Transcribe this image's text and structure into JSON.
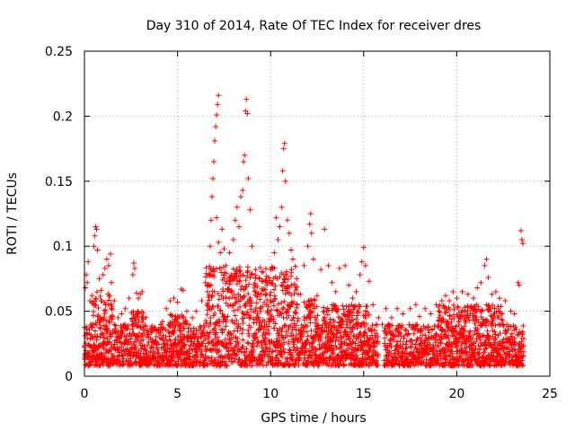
{
  "chart_data": {
    "type": "scatter",
    "title": "Day 310 of 2014, Rate Of TEC Index for receiver dres",
    "xlabel": "GPS time / hours",
    "ylabel": "ROTI / TECUs",
    "xlim": [
      0,
      25
    ],
    "ylim": [
      0,
      0.25
    ],
    "x_ticks": [
      0,
      5,
      10,
      15,
      20,
      25
    ],
    "x_tick_labels": [
      "0",
      "5",
      "10",
      "15",
      "20",
      "25"
    ],
    "y_ticks": [
      0,
      0.05,
      0.1,
      0.15,
      0.2,
      0.25
    ],
    "y_tick_labels": [
      "0",
      "0.05",
      "0.1",
      "0.15",
      "0.2",
      "0.25"
    ],
    "grid": true,
    "marker": "+",
    "color": "#ff0000",
    "series": [
      {
        "name": "ROTI",
        "points": [
          [
            0.05,
            0.068
          ],
          [
            0.1,
            0.078
          ],
          [
            0.15,
            0.072
          ],
          [
            0.2,
            0.088
          ],
          [
            0.3,
            0.058
          ],
          [
            0.4,
            0.062
          ],
          [
            0.5,
            0.1
          ],
          [
            0.55,
            0.108
          ],
          [
            0.6,
            0.115
          ],
          [
            0.65,
            0.113
          ],
          [
            0.7,
            0.097
          ],
          [
            0.8,
            0.075
          ],
          [
            0.9,
            0.066
          ],
          [
            1.0,
            0.078
          ],
          [
            1.1,
            0.083
          ],
          [
            1.2,
            0.09
          ],
          [
            1.3,
            0.085
          ],
          [
            1.4,
            0.094
          ],
          [
            1.45,
            0.072
          ],
          [
            1.6,
            0.058
          ],
          [
            1.8,
            0.045
          ],
          [
            2.0,
            0.048
          ],
          [
            2.2,
            0.052
          ],
          [
            2.4,
            0.06
          ],
          [
            2.6,
            0.078
          ],
          [
            2.65,
            0.087
          ],
          [
            2.7,
            0.083
          ],
          [
            2.8,
            0.064
          ],
          [
            2.9,
            0.06
          ],
          [
            3.0,
            0.063
          ],
          [
            3.1,
            0.065
          ],
          [
            3.3,
            0.045
          ],
          [
            3.6,
            0.035
          ],
          [
            4.0,
            0.033
          ],
          [
            4.2,
            0.042
          ],
          [
            4.4,
            0.052
          ],
          [
            4.6,
            0.058
          ],
          [
            4.8,
            0.06
          ],
          [
            5.0,
            0.057
          ],
          [
            5.2,
            0.067
          ],
          [
            5.3,
            0.066
          ],
          [
            5.5,
            0.05
          ],
          [
            5.8,
            0.045
          ],
          [
            6.0,
            0.05
          ],
          [
            6.3,
            0.058
          ],
          [
            6.5,
            0.072
          ],
          [
            6.6,
            0.065
          ],
          [
            6.75,
            0.1
          ],
          [
            6.8,
            0.12
          ],
          [
            6.85,
            0.138
          ],
          [
            6.9,
            0.152
          ],
          [
            6.95,
            0.165
          ],
          [
            7.0,
            0.181
          ],
          [
            7.05,
            0.192
          ],
          [
            7.1,
            0.201
          ],
          [
            7.15,
            0.209
          ],
          [
            7.2,
            0.216
          ],
          [
            7.1,
            0.122
          ],
          [
            7.2,
            0.103
          ],
          [
            7.3,
            0.095
          ],
          [
            7.4,
            0.113
          ],
          [
            7.5,
            0.098
          ],
          [
            7.6,
            0.085
          ],
          [
            7.8,
            0.095
          ],
          [
            8.0,
            0.105
          ],
          [
            8.1,
            0.12
          ],
          [
            8.2,
            0.13
          ],
          [
            8.3,
            0.115
          ],
          [
            8.4,
            0.138
          ],
          [
            8.5,
            0.143
          ],
          [
            8.55,
            0.165
          ],
          [
            8.6,
            0.17
          ],
          [
            8.65,
            0.204
          ],
          [
            8.7,
            0.213
          ],
          [
            8.75,
            0.202
          ],
          [
            8.8,
            0.152
          ],
          [
            8.9,
            0.128
          ],
          [
            9.0,
            0.1
          ],
          [
            9.2,
            0.082
          ],
          [
            9.4,
            0.075
          ],
          [
            9.6,
            0.08
          ],
          [
            9.8,
            0.07
          ],
          [
            10.0,
            0.082
          ],
          [
            10.2,
            0.095
          ],
          [
            10.3,
            0.122
          ],
          [
            10.4,
            0.105
          ],
          [
            10.5,
            0.115
          ],
          [
            10.6,
            0.13
          ],
          [
            10.65,
            0.158
          ],
          [
            10.7,
            0.175
          ],
          [
            10.75,
            0.179
          ],
          [
            10.8,
            0.15
          ],
          [
            10.9,
            0.12
          ],
          [
            11.0,
            0.11
          ],
          [
            11.1,
            0.097
          ],
          [
            11.2,
            0.09
          ],
          [
            11.4,
            0.075
          ],
          [
            11.6,
            0.063
          ],
          [
            11.8,
            0.085
          ],
          [
            12.0,
            0.1
          ],
          [
            12.1,
            0.117
          ],
          [
            12.15,
            0.125
          ],
          [
            12.2,
            0.11
          ],
          [
            12.3,
            0.09
          ],
          [
            12.5,
            0.062
          ],
          [
            12.7,
            0.082
          ],
          [
            12.9,
            0.113
          ],
          [
            13.1,
            0.085
          ],
          [
            13.3,
            0.072
          ],
          [
            13.5,
            0.065
          ],
          [
            13.7,
            0.083
          ],
          [
            14.0,
            0.085
          ],
          [
            14.2,
            0.07
          ],
          [
            14.4,
            0.06
          ],
          [
            14.6,
            0.065
          ],
          [
            14.8,
            0.078
          ],
          [
            14.9,
            0.088
          ],
          [
            15.0,
            0.099
          ],
          [
            15.1,
            0.085
          ],
          [
            15.3,
            0.073
          ],
          [
            15.5,
            0.055
          ],
          [
            15.8,
            0.045
          ],
          [
            16.0,
            0.04
          ],
          [
            16.2,
            0.052
          ],
          [
            16.5,
            0.045
          ],
          [
            16.8,
            0.052
          ],
          [
            17.1,
            0.048
          ],
          [
            17.5,
            0.052
          ],
          [
            17.8,
            0.055
          ],
          [
            18.0,
            0.046
          ],
          [
            18.3,
            0.052
          ],
          [
            18.6,
            0.048
          ],
          [
            18.9,
            0.055
          ],
          [
            19.2,
            0.058
          ],
          [
            19.4,
            0.062
          ],
          [
            19.6,
            0.058
          ],
          [
            19.8,
            0.065
          ],
          [
            20.0,
            0.06
          ],
          [
            20.3,
            0.065
          ],
          [
            20.6,
            0.063
          ],
          [
            20.9,
            0.06
          ],
          [
            21.1,
            0.068
          ],
          [
            21.3,
            0.072
          ],
          [
            21.5,
            0.085
          ],
          [
            21.6,
            0.09
          ],
          [
            21.7,
            0.076
          ],
          [
            21.9,
            0.063
          ],
          [
            22.1,
            0.065
          ],
          [
            22.3,
            0.06
          ],
          [
            22.6,
            0.058
          ],
          [
            22.9,
            0.05
          ],
          [
            23.1,
            0.048
          ],
          [
            23.3,
            0.072
          ],
          [
            23.35,
            0.07
          ],
          [
            23.45,
            0.112
          ],
          [
            23.5,
            0.105
          ],
          [
            23.55,
            0.102
          ]
        ]
      }
    ],
    "dense_band": {
      "description": "dense background cluster of + markers",
      "x_range": [
        0,
        23.6
      ],
      "y_range_typical": [
        0.008,
        0.04
      ],
      "gap_hours": [
        15.8,
        16.1
      ],
      "high_activity_windows": [
        [
          0.4,
          1.5
        ],
        [
          2.5,
          3.2
        ],
        [
          4.5,
          5.5
        ],
        [
          6.5,
          11.5
        ],
        [
          11.8,
          12.6
        ],
        [
          12.8,
          15.3
        ],
        [
          19.0,
          22.5
        ]
      ],
      "activity_upper": [
        0.065,
        0.05,
        0.048,
        0.085,
        0.06,
        0.055,
        0.055
      ]
    }
  }
}
